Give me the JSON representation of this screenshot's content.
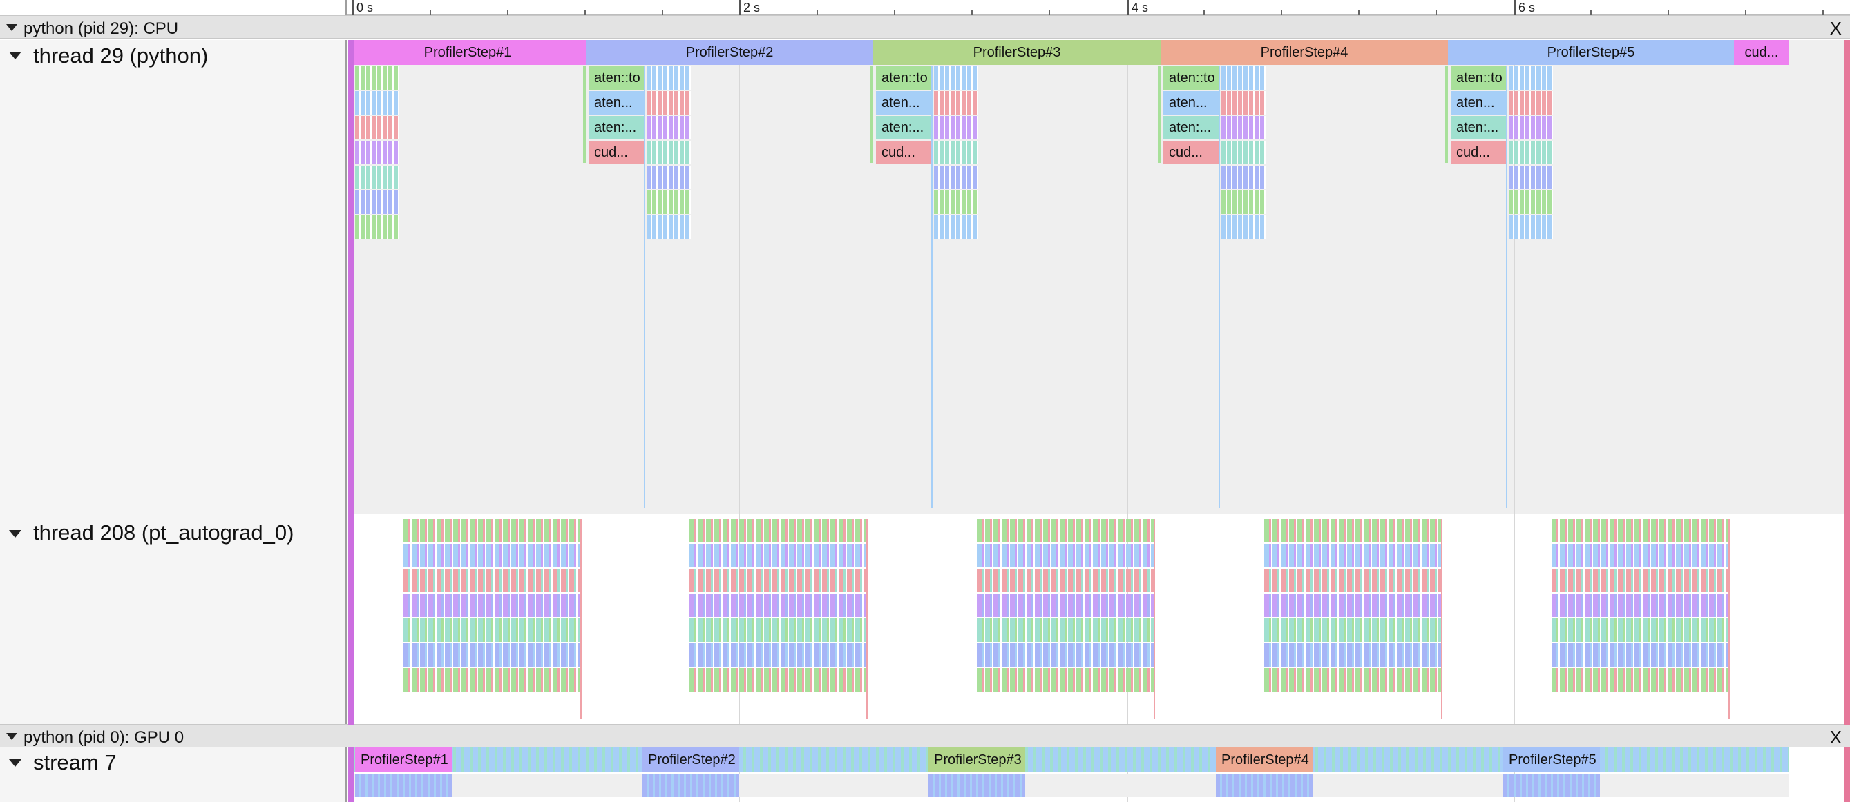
{
  "ruler": {
    "ticks": [
      {
        "label": "0 s"
      },
      {
        "label": "2 s"
      },
      {
        "label": "4 s"
      },
      {
        "label": "6 s"
      }
    ]
  },
  "processes": {
    "cpu": {
      "title": "python (pid 29): CPU",
      "close": "X"
    },
    "gpu": {
      "title": "python (pid 0): GPU 0",
      "close": "X"
    }
  },
  "threads": {
    "python": {
      "title": "thread 29 (python)"
    },
    "autograd": {
      "title": "thread 208 (pt_autograd_0)"
    },
    "stream": {
      "title": "stream 7"
    }
  },
  "steps": [
    {
      "label": "ProfilerStep#1",
      "color": "#ee82f0"
    },
    {
      "label": "ProfilerStep#2",
      "color": "#a7b5f7"
    },
    {
      "label": "ProfilerStep#3",
      "color": "#b2d68a"
    },
    {
      "label": "ProfilerStep#4",
      "color": "#eeaa92"
    },
    {
      "label": "ProfilerStep#5",
      "color": "#a4c2f8"
    },
    {
      "label": "cud...",
      "color": "#ee82f0"
    }
  ],
  "sub_labels": {
    "row1": "aten::to",
    "row2": "aten...",
    "row3": "aten:...",
    "row4": "cud..."
  },
  "stream_steps": [
    {
      "label": "ProfilerStep#1",
      "color": "#ee82f0"
    },
    {
      "label": "ProfilerStep#2",
      "color": "#a7b5f7"
    },
    {
      "label": "ProfilerStep#3",
      "color": "#b2d68a"
    },
    {
      "label": "ProfilerStep#4",
      "color": "#eeaa92"
    },
    {
      "label": "ProfilerStep#5",
      "color": "#a4c2f8"
    }
  ]
}
